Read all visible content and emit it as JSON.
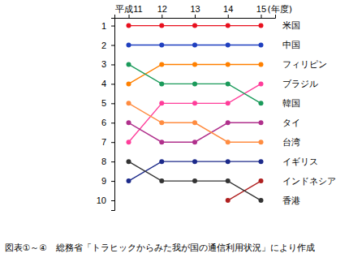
{
  "chart_data": {
    "type": "line",
    "x_label": "(年度)",
    "annotations": [
      "図表①～④　総務省「トラヒックからみた我が国の通信利用状況」により作成"
    ],
    "categories": [
      "平成11",
      "12",
      "13",
      "14",
      "15"
    ],
    "ylim": [
      0.6,
      10.5
    ],
    "yticks": [
      1,
      2,
      3,
      4,
      5,
      6,
      7,
      8,
      9,
      10
    ],
    "marker": "circle",
    "series": [
      {
        "name": "米国",
        "color": "#e8101e",
        "values": [
          1,
          1,
          1,
          1,
          1
        ]
      },
      {
        "name": "中国",
        "color": "#1f3fbf",
        "values": [
          2,
          2,
          2,
          2,
          2
        ]
      },
      {
        "name": "フィリピン",
        "color": "#ff8000",
        "values": [
          4,
          3,
          3,
          3,
          3
        ]
      },
      {
        "name": "ブラジル",
        "color": "#ff3d9a",
        "values": [
          7,
          5,
          5,
          5,
          4
        ]
      },
      {
        "name": "韓国",
        "color": "#1a9a5a",
        "values": [
          3,
          4,
          4,
          4,
          5
        ]
      },
      {
        "name": "タイ",
        "color": "#b0308c",
        "values": [
          6,
          7,
          7,
          6,
          6
        ]
      },
      {
        "name": "台湾",
        "color": "#ff8c40",
        "values": [
          5,
          6,
          6,
          7,
          7
        ]
      },
      {
        "name": "イギリス",
        "color": "#1c2a8a",
        "values": [
          9,
          8,
          8,
          8,
          8
        ]
      },
      {
        "name": "インドネシア",
        "color": "#b02020",
        "values": [
          null,
          null,
          null,
          10,
          9
        ]
      },
      {
        "name": "香港",
        "color": "#333333",
        "values": [
          8,
          9,
          9,
          9,
          10
        ]
      }
    ]
  }
}
